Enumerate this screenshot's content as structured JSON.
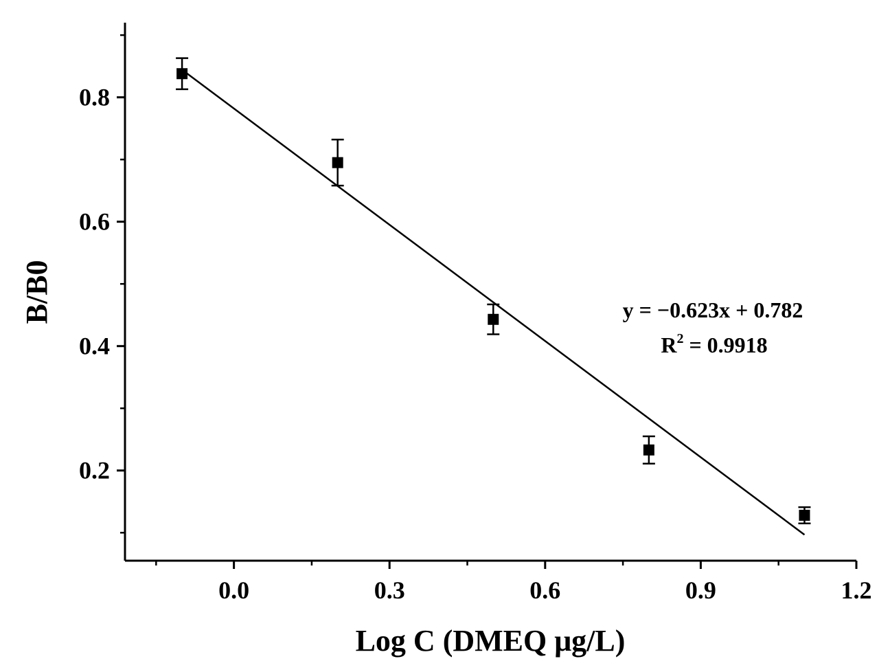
{
  "chart_data": {
    "type": "scatter",
    "title": "",
    "xlabel": "Log C (DMEQ μg/L)",
    "ylabel": "B/B0",
    "xlim": [
      -0.21,
      1.2
    ],
    "ylim": [
      0.055,
      0.92
    ],
    "x_ticks": [
      0.0,
      0.3,
      0.6,
      0.9,
      1.2
    ],
    "x_tick_labels": [
      "0.0",
      "0.3",
      "0.6",
      "0.9",
      "1.2"
    ],
    "y_ticks": [
      0.2,
      0.4,
      0.6,
      0.8
    ],
    "y_tick_labels": [
      "0.2",
      "0.4",
      "0.6",
      "0.8"
    ],
    "grid": false,
    "legend": "none",
    "series": [
      {
        "marker": "square",
        "color": "#000000",
        "points": [
          {
            "x": -0.1,
            "y": 0.838,
            "err": 0.025
          },
          {
            "x": 0.2,
            "y": 0.695,
            "err": 0.037
          },
          {
            "x": 0.5,
            "y": 0.443,
            "err": 0.024
          },
          {
            "x": 0.8,
            "y": 0.233,
            "err": 0.022
          },
          {
            "x": 1.1,
            "y": 0.128,
            "err": 0.013
          }
        ]
      }
    ],
    "fit_line": {
      "slope": -0.623,
      "intercept": 0.782,
      "x_range": [
        -0.1,
        1.1
      ],
      "color": "#000000"
    },
    "annotation": {
      "equation": "y = −0.623x + 0.782",
      "r2_prefix": "R",
      "r2_sup": "2",
      "r2_value": " = 0.9918"
    }
  }
}
